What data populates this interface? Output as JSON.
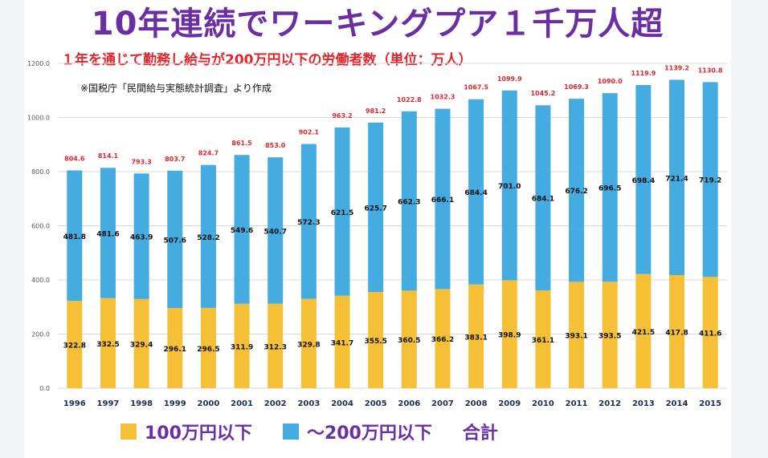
{
  "page": {
    "title": "10年連続でワーキングプア１千万人超",
    "subtitle": "１年を通じて勤務し給与が200万円以下の労働者数（単位：万人）",
    "note": "※国税庁「民間給与実態統計調査」より作成"
  },
  "colors": {
    "below100": "#f5c035",
    "to200": "#45ace2",
    "label_total": "#e0262c",
    "legend_text": "#6a2fa0"
  },
  "chart_data": {
    "type": "bar",
    "stacked": true,
    "categories": [
      "1996",
      "1997",
      "1998",
      "1999",
      "2000",
      "2001",
      "2002",
      "2003",
      "2004",
      "2005",
      "2006",
      "2007",
      "2008",
      "2009",
      "2010",
      "2011",
      "2012",
      "2013",
      "2014",
      "2015"
    ],
    "series": [
      {
        "name": "100万円以下",
        "values": [
          322.8,
          332.5,
          329.4,
          296.1,
          296.5,
          311.9,
          312.3,
          329.8,
          341.7,
          355.5,
          360.5,
          366.2,
          383.1,
          398.9,
          361.1,
          393.1,
          393.5,
          421.5,
          417.8,
          411.6
        ]
      },
      {
        "name": "～200万円以下",
        "values": [
          481.8,
          481.6,
          463.9,
          507.6,
          528.2,
          549.6,
          540.7,
          572.3,
          621.5,
          625.7,
          662.3,
          666.1,
          684.4,
          701.0,
          684.1,
          676.2,
          696.5,
          698.4,
          721.4,
          719.2
        ]
      }
    ],
    "totals": {
      "name": "合計",
      "values": [
        804.6,
        814.1,
        793.3,
        803.7,
        824.7,
        861.5,
        853.0,
        902.1,
        963.2,
        981.2,
        1022.8,
        1032.3,
        1067.5,
        1099.9,
        1045.2,
        1069.3,
        1090.0,
        1119.9,
        1139.2,
        1130.8
      ]
    },
    "ylim": [
      0,
      1200
    ],
    "yticks": [
      0,
      200,
      400,
      600,
      800,
      1000,
      1200
    ],
    "grid": true,
    "legend": "bottom"
  }
}
